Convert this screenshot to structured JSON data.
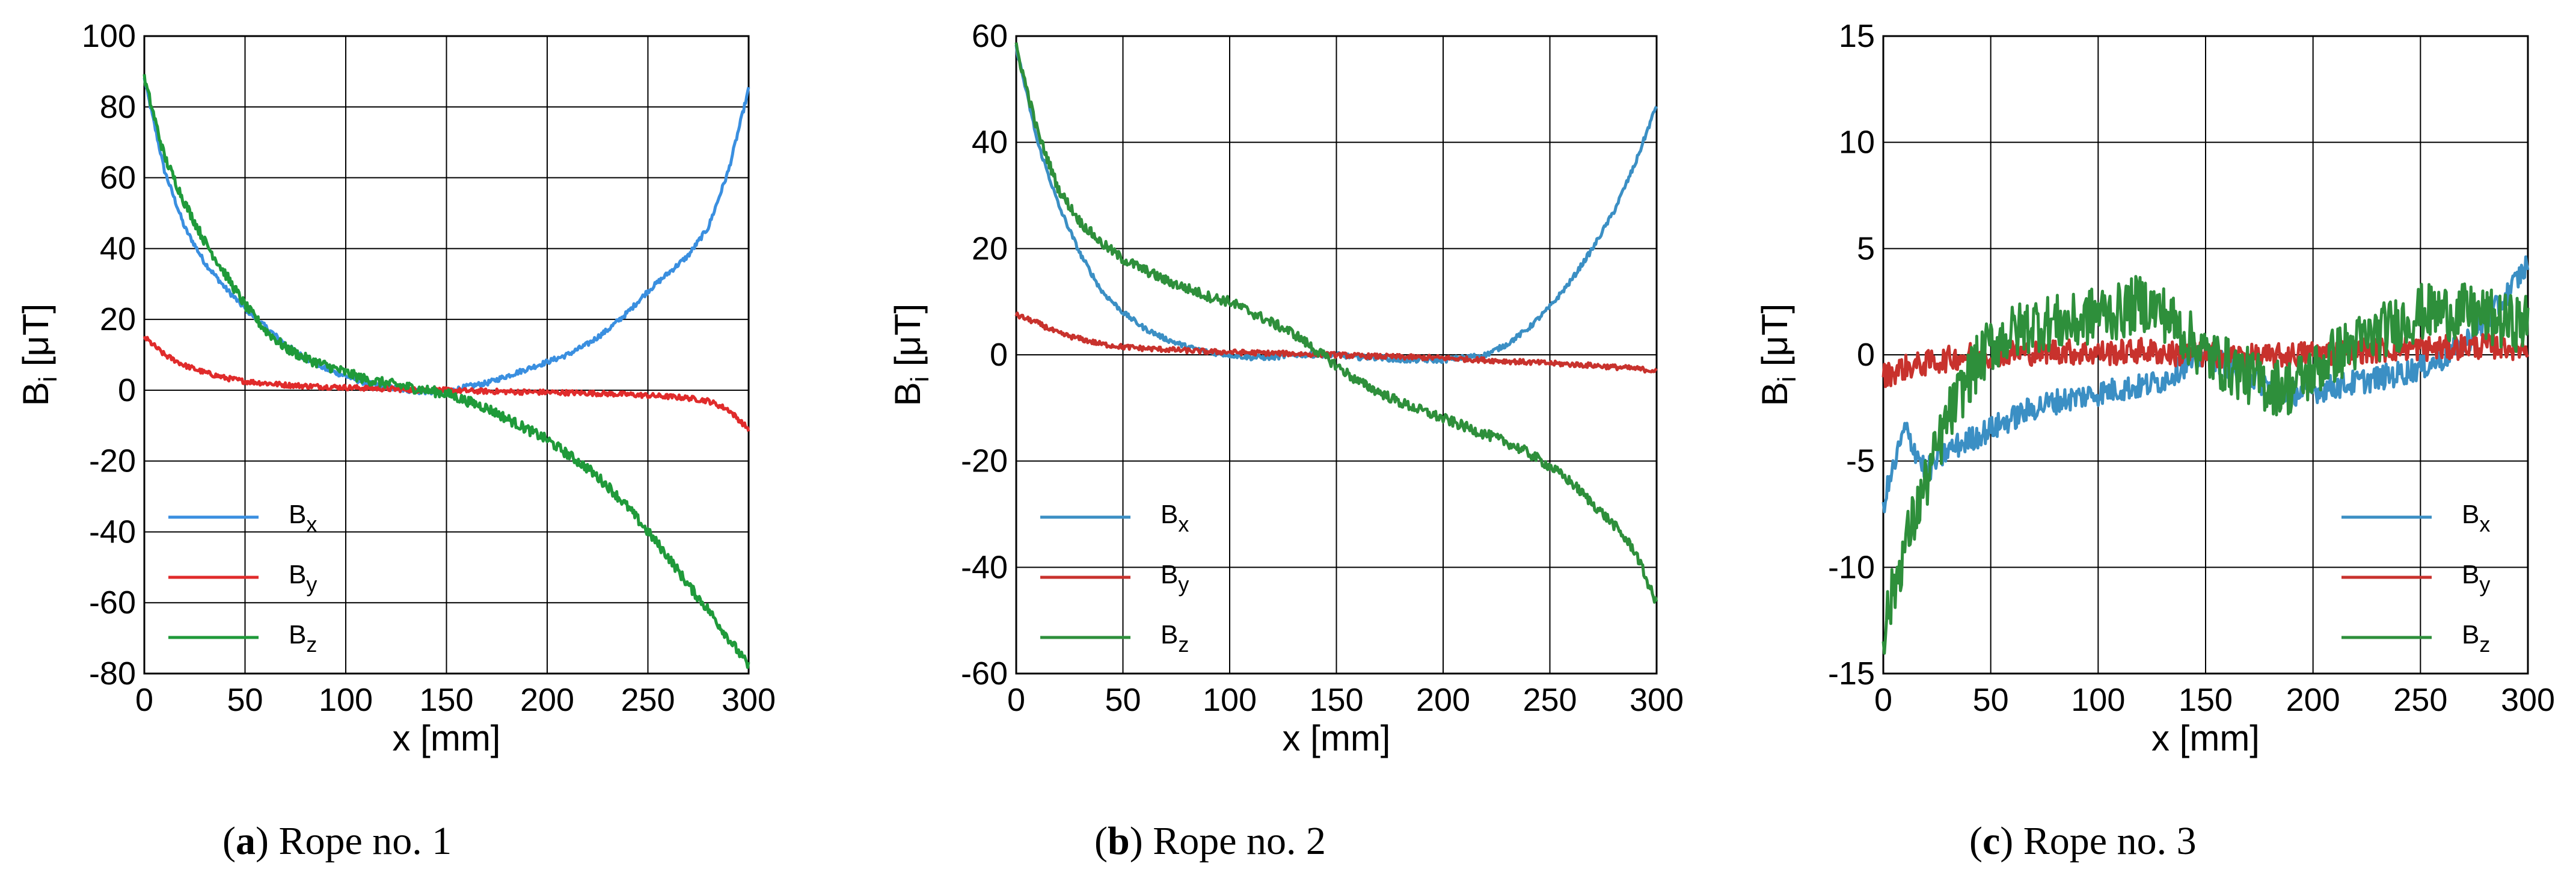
{
  "figure": "magnetic field components along rope",
  "colors": {
    "Bx": "#3a8fe0",
    "By": "#e02b2b",
    "Bz": "#1f9a3a",
    "Bx_alt": "#3b8fc4",
    "By_alt": "#c8322d",
    "Bz_alt": "#2e8f3b"
  },
  "chart_data": [
    {
      "type": "line",
      "caption": {
        "letter": "a",
        "open": "(",
        "close": ")",
        "text": " Rope no. 1"
      },
      "xlabel": "x [mm]",
      "ylabel": {
        "main": "B",
        "sub": "i",
        "unit": " [μT]"
      },
      "xlim": [
        0,
        300
      ],
      "ylim": [
        -80,
        100
      ],
      "xticks": [
        0,
        50,
        100,
        150,
        200,
        250,
        300
      ],
      "yticks": [
        -80,
        -60,
        -40,
        -20,
        0,
        20,
        40,
        60,
        80,
        100
      ],
      "legend": "bottom-left",
      "grid": true,
      "series": [
        {
          "name": "B",
          "sub": "x",
          "color_key": "Bx",
          "x": [
            0,
            10,
            20,
            30,
            40,
            50,
            60,
            70,
            80,
            90,
            100,
            110,
            120,
            130,
            140,
            150,
            160,
            170,
            180,
            190,
            200,
            210,
            220,
            230,
            240,
            250,
            260,
            270,
            280,
            290,
            300
          ],
          "y": [
            88,
            62,
            46,
            36,
            29,
            23,
            18,
            13,
            9,
            6,
            4,
            2,
            1,
            0,
            -0.5,
            -0.5,
            1,
            2,
            4,
            6,
            8,
            10,
            13,
            17,
            22,
            28,
            33,
            38,
            46,
            62,
            85
          ]
        },
        {
          "name": "B",
          "sub": "y",
          "color_key": "By",
          "x": [
            0,
            10,
            20,
            30,
            40,
            50,
            60,
            70,
            80,
            90,
            100,
            110,
            120,
            130,
            140,
            150,
            160,
            170,
            180,
            190,
            200,
            210,
            220,
            230,
            240,
            250,
            260,
            270,
            280,
            290,
            300
          ],
          "y": [
            15,
            10,
            7,
            5,
            3.5,
            2.5,
            2,
            1.5,
            1.2,
            1,
            0.8,
            0.6,
            0.4,
            0.2,
            0,
            0,
            -0.2,
            -0.3,
            -0.4,
            -0.5,
            -0.6,
            -0.7,
            -0.8,
            -1,
            -1.2,
            -1.5,
            -1.8,
            -2.2,
            -3,
            -5.5,
            -11
          ]
        },
        {
          "name": "B",
          "sub": "z",
          "color_key": "Bz",
          "x": [
            0,
            10,
            20,
            30,
            40,
            50,
            60,
            70,
            80,
            90,
            100,
            110,
            120,
            130,
            140,
            150,
            160,
            170,
            180,
            190,
            200,
            210,
            220,
            230,
            240,
            250,
            260,
            270,
            280,
            290,
            300
          ],
          "y": [
            88,
            66,
            53,
            42,
            33,
            24,
            17,
            12,
            9,
            7,
            5,
            3,
            2,
            1,
            0,
            -1,
            -3,
            -5,
            -8,
            -11,
            -14,
            -18,
            -22,
            -27,
            -33,
            -40,
            -47,
            -55,
            -62,
            -70,
            -78
          ]
        }
      ]
    },
    {
      "type": "line",
      "caption": {
        "letter": "b",
        "open": "(",
        "close": ")",
        "text": " Rope no. 2"
      },
      "xlabel": "x [mm]",
      "ylabel": {
        "main": "B",
        "sub": "i",
        "unit": " [μT]"
      },
      "xlim": [
        0,
        300
      ],
      "ylim": [
        -60,
        60
      ],
      "xticks": [
        0,
        50,
        100,
        150,
        200,
        250,
        300
      ],
      "yticks": [
        -60,
        -40,
        -20,
        0,
        20,
        40,
        60
      ],
      "legend": "bottom-left",
      "grid": true,
      "series": [
        {
          "name": "B",
          "sub": "x",
          "color_key": "Bx_alt",
          "x": [
            0,
            10,
            20,
            30,
            40,
            50,
            60,
            70,
            80,
            90,
            100,
            110,
            120,
            130,
            140,
            150,
            160,
            170,
            180,
            190,
            200,
            210,
            220,
            230,
            240,
            250,
            260,
            270,
            280,
            290,
            300
          ],
          "y": [
            58,
            40,
            28,
            19,
            12,
            8,
            5,
            3,
            1.5,
            0.5,
            0,
            -0.5,
            -0.5,
            0,
            0,
            0,
            -0.5,
            -0.5,
            -1,
            -1,
            -1,
            -0.5,
            0,
            2,
            5,
            9,
            14,
            20,
            27,
            36,
            47
          ]
        },
        {
          "name": "B",
          "sub": "y",
          "color_key": "By_alt",
          "x": [
            0,
            10,
            20,
            30,
            40,
            50,
            60,
            70,
            80,
            90,
            100,
            110,
            120,
            130,
            140,
            150,
            160,
            170,
            180,
            190,
            200,
            210,
            220,
            230,
            240,
            250,
            260,
            270,
            280,
            290,
            300
          ],
          "y": [
            7.5,
            6,
            4,
            3,
            2,
            1.5,
            1.2,
            1,
            0.8,
            0.6,
            0.5,
            0.4,
            0.3,
            0.2,
            0.1,
            0,
            -0.2,
            -0.3,
            -0.4,
            -0.5,
            -0.6,
            -0.8,
            -1,
            -1.2,
            -1.4,
            -1.6,
            -1.8,
            -2,
            -2.3,
            -2.6,
            -3
          ]
        },
        {
          "name": "B",
          "sub": "z",
          "color_key": "Bz_alt",
          "x": [
            0,
            10,
            20,
            30,
            40,
            50,
            60,
            70,
            80,
            90,
            100,
            110,
            120,
            130,
            140,
            150,
            160,
            170,
            180,
            190,
            200,
            210,
            220,
            230,
            240,
            250,
            260,
            270,
            280,
            290,
            300
          ],
          "y": [
            58,
            42,
            31,
            25,
            21,
            18,
            16,
            14,
            12.5,
            11,
            10,
            8,
            6,
            4,
            1,
            -2,
            -5,
            -7,
            -9,
            -10.5,
            -12,
            -13.5,
            -15,
            -16.5,
            -18.5,
            -21,
            -24,
            -28,
            -32,
            -37,
            -47
          ]
        }
      ]
    },
    {
      "type": "line",
      "caption": {
        "letter": "c",
        "open": "(",
        "close": ")",
        "text": " Rope no. 3"
      },
      "xlabel": "x [mm]",
      "ylabel": {
        "main": "B",
        "sub": "i",
        "unit": " [μT]"
      },
      "xlim": [
        0,
        300
      ],
      "ylim": [
        -15,
        15
      ],
      "xticks": [
        0,
        50,
        100,
        150,
        200,
        250,
        300
      ],
      "yticks": [
        -15,
        -10,
        -5,
        0,
        5,
        10,
        15
      ],
      "legend": "bottom-right",
      "grid": true,
      "series": [
        {
          "name": "B",
          "sub": "x",
          "color_key": "Bx_alt",
          "x": [
            0,
            10,
            20,
            30,
            40,
            50,
            60,
            70,
            80,
            90,
            100,
            110,
            120,
            130,
            140,
            150,
            160,
            170,
            180,
            190,
            200,
            210,
            220,
            230,
            240,
            250,
            260,
            270,
            280,
            290,
            300
          ],
          "y": [
            -7,
            -3.5,
            -5.5,
            -4.5,
            -4,
            -3.5,
            -3,
            -2.5,
            -2.2,
            -2,
            -1.8,
            -1.6,
            -1.5,
            -1.2,
            -0.5,
            0,
            -0.5,
            -1,
            -1.5,
            -1.8,
            -1.7,
            -1.5,
            -1.3,
            -1.1,
            -0.9,
            -0.6,
            -0.2,
            0.5,
            1.5,
            2.8,
            4.3
          ]
        },
        {
          "name": "B",
          "sub": "y",
          "color_key": "By_alt",
          "x": [
            0,
            10,
            20,
            30,
            40,
            50,
            60,
            70,
            80,
            90,
            100,
            110,
            120,
            130,
            140,
            150,
            160,
            170,
            180,
            190,
            200,
            210,
            220,
            230,
            240,
            250,
            260,
            270,
            280,
            290,
            300
          ],
          "y": [
            -1,
            -0.6,
            -0.4,
            -0.2,
            0,
            0,
            0.1,
            0.1,
            0.2,
            0.1,
            0.1,
            0.1,
            0.2,
            0.1,
            0,
            0,
            0,
            -0.1,
            -0.1,
            0,
            0.1,
            0.1,
            0.2,
            0.2,
            0.3,
            0.3,
            0.3,
            0.4,
            0.4,
            0.4,
            0.3
          ]
        },
        {
          "name": "B",
          "sub": "z",
          "color_key": "Bz_alt",
          "x": [
            0,
            10,
            20,
            30,
            40,
            50,
            60,
            70,
            80,
            90,
            100,
            110,
            120,
            130,
            140,
            150,
            160,
            170,
            180,
            190,
            200,
            210,
            220,
            230,
            240,
            250,
            260,
            270,
            280,
            290,
            300
          ],
          "y": [
            -13,
            -9,
            -6,
            -3,
            -1,
            0.5,
            1,
            1.5,
            1.5,
            1.5,
            2,
            2,
            2.5,
            2,
            1,
            0,
            -0.5,
            -1,
            -1.5,
            -1.5,
            -0.8,
            0,
            0.5,
            1,
            1.5,
            2,
            2,
            2,
            1.8,
            1.5,
            1.5
          ]
        }
      ]
    }
  ]
}
